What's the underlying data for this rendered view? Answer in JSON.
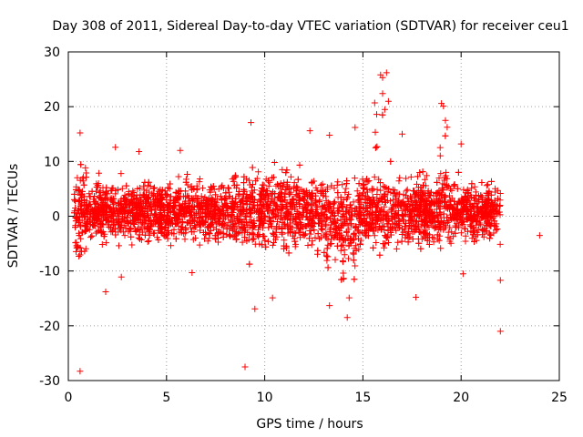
{
  "chart_data": {
    "type": "scatter",
    "title": "Day 308 of 2011, Sidereal Day-to-day VTEC variation (SDTVAR) for receiver ceu1",
    "xlabel": "GPS time / hours",
    "ylabel": "SDTVAR / TECUs",
    "xlim": [
      0,
      25
    ],
    "ylim": [
      -30,
      30
    ],
    "x_ticks": [
      0,
      5,
      10,
      15,
      20,
      25
    ],
    "y_ticks": [
      -30,
      -20,
      -10,
      0,
      10,
      20,
      30
    ],
    "x_tick_labels": [
      "0",
      "5",
      "10",
      "15",
      "20",
      "25"
    ],
    "y_tick_labels": [
      "-30",
      "-20",
      "-10",
      "0",
      "10",
      "20",
      "30"
    ],
    "grid": true,
    "marker": "+",
    "color": "#ff0000",
    "series": [
      {
        "name": "SDTVAR",
        "description_of_bulk": "dense band of several thousand points between x=0.3 and x=22 h, mostly within -5 to +6 TECU",
        "points": [
          [
            0.6,
            -28.3
          ],
          [
            0.6,
            15.2
          ],
          [
            1.9,
            -13.8
          ],
          [
            2.4,
            12.6
          ],
          [
            2.7,
            -11.1
          ],
          [
            3.6,
            11.8
          ],
          [
            5.7,
            12.0
          ],
          [
            6.3,
            -10.3
          ],
          [
            9.0,
            -27.5
          ],
          [
            9.3,
            17.1
          ],
          [
            9.5,
            -16.9
          ],
          [
            10.4,
            -14.9
          ],
          [
            10.5,
            9.8
          ],
          [
            12.3,
            15.6
          ],
          [
            13.3,
            14.8
          ],
          [
            13.3,
            -16.3
          ],
          [
            14.2,
            -18.5
          ],
          [
            14.3,
            -14.9
          ],
          [
            14.6,
            16.2
          ],
          [
            15.9,
            25.8
          ],
          [
            16.0,
            25.3
          ],
          [
            16.2,
            26.2
          ],
          [
            16.0,
            22.4
          ],
          [
            15.6,
            20.7
          ],
          [
            16.3,
            21.0
          ],
          [
            15.7,
            18.6
          ],
          [
            17.7,
            -14.8
          ],
          [
            17.0,
            15.0
          ],
          [
            19.0,
            20.6
          ],
          [
            19.1,
            20.1
          ],
          [
            19.2,
            17.5
          ],
          [
            20.0,
            13.2
          ],
          [
            20.1,
            -10.5
          ],
          [
            22.0,
            -21.0
          ],
          [
            22.0,
            -11.7
          ],
          [
            24.0,
            -3.5
          ]
        ]
      }
    ]
  }
}
